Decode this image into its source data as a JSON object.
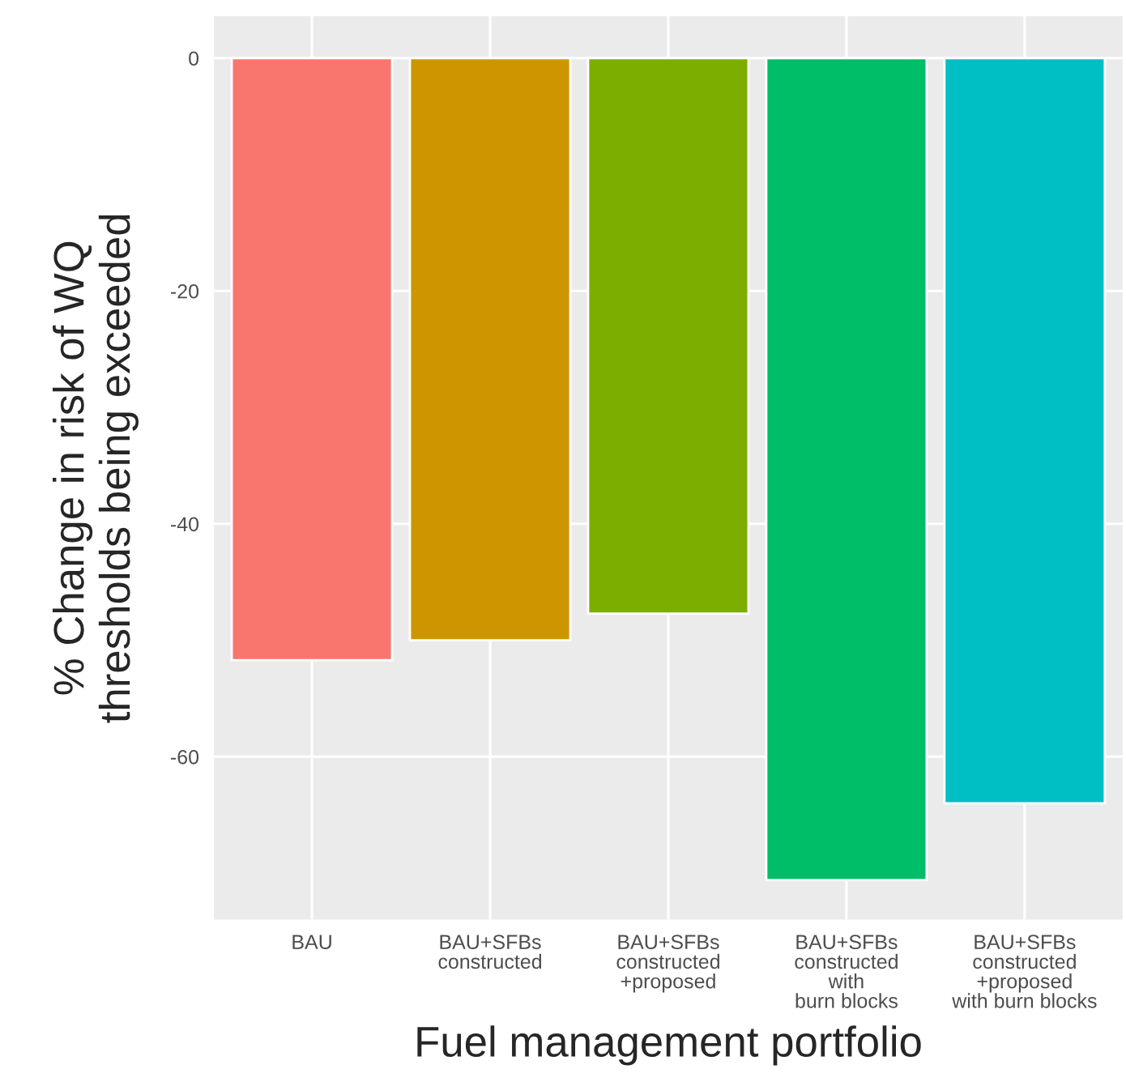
{
  "chart_data": {
    "type": "bar",
    "xlabel": "Fuel management portfolio",
    "ylabel": "% Change in risk of WQ\nthresholds being exceeded",
    "categories": [
      "BAU",
      "BAU+SFBs\nconstructed",
      "BAU+SFBs\nconstructed\n+proposed",
      "BAU+SFBs\nconstructed\nwith\nburn blocks",
      "BAU+SFBs\nconstructed\n+proposed\nwith burn blocks"
    ],
    "values": [
      -51.7,
      -50.0,
      -47.7,
      -70.6,
      -64.0
    ],
    "colors": [
      "#f8766d",
      "#cd9600",
      "#7cae00",
      "#00be67",
      "#00bfc4"
    ],
    "ylim": [
      -74,
      3.6
    ],
    "yticks": [
      {
        "value": -60,
        "label": "-60"
      },
      {
        "value": -40,
        "label": "-40"
      },
      {
        "value": -20,
        "label": "-20"
      },
      0
    ],
    "grid": true,
    "legend": false
  }
}
